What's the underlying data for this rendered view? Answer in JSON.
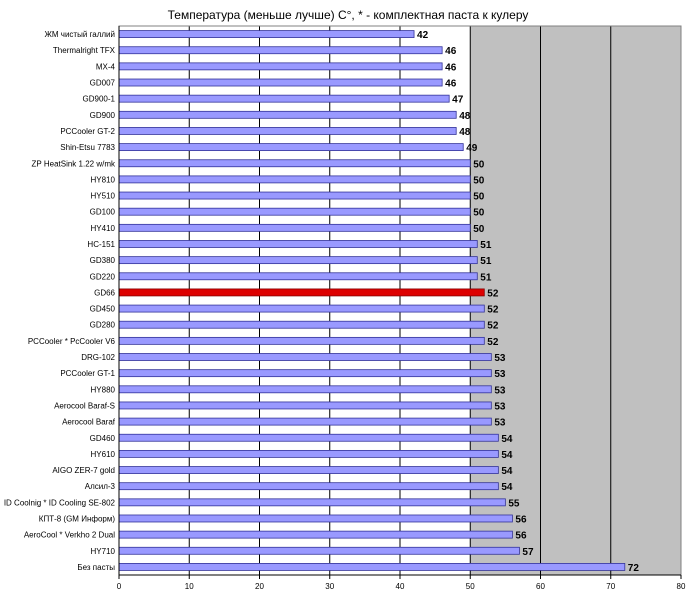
{
  "chart_data": {
    "type": "bar",
    "orientation": "horizontal",
    "title": "Температура (меньше лучше) С°, * - комплектная паста к кулеру",
    "categories": [
      "ЖМ чистый галлий",
      "Thermalright TFX",
      "MX-4",
      "GD007",
      "GD900-1",
      "GD900",
      "PCCooler GT-2",
      "Shin-Etsu 7783",
      "ZP HeatSink 1.22 w/mk",
      "HY810",
      "HY510",
      "GD100",
      "HY410",
      "HC-151",
      "GD380",
      "GD220",
      "GD66",
      "GD450",
      "GD280",
      "PCCooler * PcCooler V6",
      "DRG-102",
      "PCCooler GT-1",
      "HY880",
      "Aerocool Baraf-S",
      "Aerocool Baraf",
      "GD460",
      "HY610",
      "AIGO ZER-7 gold",
      "Алсил-3",
      "ID Coolnig * ID Cooling SE-802",
      "КПТ-8 (GM Информ)",
      "AeroCool * Verkho 2 Dual",
      "HY710",
      "Без пасты"
    ],
    "values": [
      42,
      46,
      46,
      46,
      47,
      48,
      48,
      49,
      50,
      50,
      50,
      50,
      50,
      51,
      51,
      51,
      52,
      52,
      52,
      52,
      53,
      53,
      53,
      53,
      53,
      54,
      54,
      54,
      54,
      55,
      56,
      56,
      57,
      72
    ],
    "highlight_category": "GD66",
    "xlim": [
      0,
      80
    ],
    "xticks": [
      0,
      10,
      20,
      30,
      40,
      50,
      60,
      70,
      80
    ],
    "grid": true,
    "colors": {
      "bar": "#9999ff",
      "bar_border": "#333399",
      "highlight": "#dd0000",
      "plot_background_grey": "#c0c0c0",
      "plot_background_white": "#ffffff"
    }
  }
}
